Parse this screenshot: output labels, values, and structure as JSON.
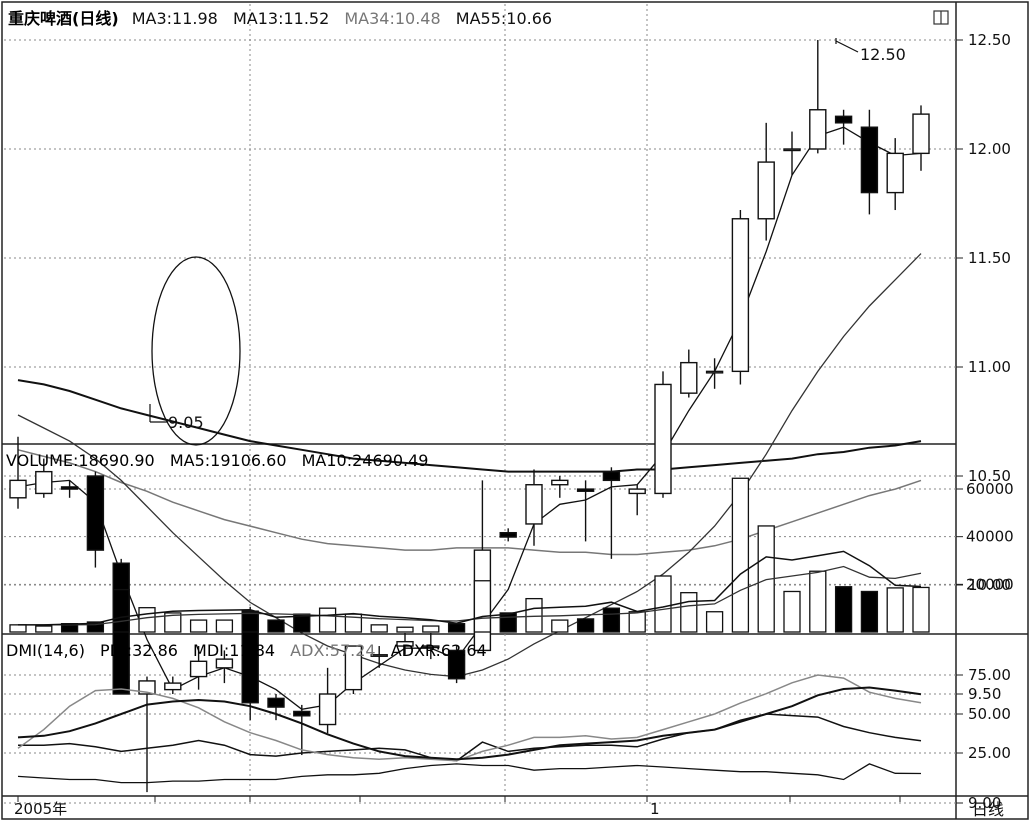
{
  "price_panel": {
    "title": "重庆啤酒(日线)",
    "ma_labels": [
      {
        "text": "MA3:11.98",
        "color": "#111111"
      },
      {
        "text": "MA13:11.52",
        "color": "#111111"
      },
      {
        "text": "MA34:10.48",
        "color": "#777777"
      },
      {
        "text": "MA55:10.66",
        "color": "#111111"
      }
    ],
    "y_ticks": [
      "12.50",
      "12.00",
      "11.50",
      "11.00",
      "10.50",
      "10.00",
      "9.50",
      "9.00"
    ],
    "annotations": {
      "low": "9.05",
      "high": "12.50"
    }
  },
  "volume_panel": {
    "labels": [
      {
        "text": "VOLUME:18690.90",
        "color": "#111111"
      },
      {
        "text": "MA5:19106.60",
        "color": "#111111"
      },
      {
        "text": "MA10:24690.49",
        "color": "#111111"
      }
    ],
    "y_ticks": [
      "60000",
      "40000",
      "20000"
    ]
  },
  "dmi_panel": {
    "labels": [
      {
        "text": "DMI(14,6)",
        "color": "#111111"
      },
      {
        "text": "PDI:32.86",
        "color": "#111111"
      },
      {
        "text": "MDI:11.84",
        "color": "#111111"
      },
      {
        "text": "ADX:57.24",
        "color": "#777777"
      },
      {
        "text": "ADXR:62.64",
        "color": "#111111"
      }
    ],
    "y_ticks": [
      "75.00",
      "50.00",
      "25.00"
    ]
  },
  "x_axis": {
    "labels": [
      "2005年",
      "1"
    ]
  },
  "period_button": "日线",
  "colors": {
    "up": "#ffffff",
    "down": "#000000",
    "grid": "#9a9a9a",
    "ma34": "#777777"
  },
  "chart_data": [
    {
      "type": "candlestick",
      "title": "重庆啤酒(日线)",
      "ylim": [
        8.85,
        12.72
      ],
      "candles": [
        {
          "o": 10.4,
          "h": 10.68,
          "l": 10.35,
          "c": 10.48
        },
        {
          "o": 10.42,
          "h": 10.58,
          "l": 10.4,
          "c": 10.52
        },
        {
          "o": 10.45,
          "h": 10.48,
          "l": 10.4,
          "c": 10.44
        },
        {
          "o": 10.5,
          "h": 10.52,
          "l": 10.08,
          "c": 10.16
        },
        {
          "o": 10.1,
          "h": 10.12,
          "l": 9.5,
          "c": 9.5
        },
        {
          "o": 9.5,
          "h": 9.58,
          "l": 9.05,
          "c": 9.56
        },
        {
          "o": 9.52,
          "h": 9.58,
          "l": 9.5,
          "c": 9.55
        },
        {
          "o": 9.58,
          "h": 9.72,
          "l": 9.52,
          "c": 9.65
        },
        {
          "o": 9.62,
          "h": 9.7,
          "l": 9.55,
          "c": 9.66
        },
        {
          "o": 9.88,
          "h": 9.9,
          "l": 9.38,
          "c": 9.46
        },
        {
          "o": 9.48,
          "h": 9.5,
          "l": 9.38,
          "c": 9.44
        },
        {
          "o": 9.42,
          "h": 9.45,
          "l": 9.22,
          "c": 9.4
        },
        {
          "o": 9.36,
          "h": 9.62,
          "l": 9.32,
          "c": 9.5
        },
        {
          "o": 9.52,
          "h": 9.72,
          "l": 9.5,
          "c": 9.72
        },
        {
          "o": 9.68,
          "h": 9.72,
          "l": 9.62,
          "c": 9.68
        },
        {
          "o": 9.72,
          "h": 9.78,
          "l": 9.68,
          "c": 9.74
        },
        {
          "o": 9.72,
          "h": 9.78,
          "l": 9.66,
          "c": 9.72
        },
        {
          "o": 9.7,
          "h": 9.72,
          "l": 9.55,
          "c": 9.57
        },
        {
          "o": 9.7,
          "h": 10.48,
          "l": 9.7,
          "c": 10.16
        },
        {
          "o": 10.24,
          "h": 10.26,
          "l": 10.2,
          "c": 10.22
        },
        {
          "o": 10.28,
          "h": 10.53,
          "l": 10.18,
          "c": 10.46
        },
        {
          "o": 10.46,
          "h": 10.5,
          "l": 10.4,
          "c": 10.48
        },
        {
          "o": 10.44,
          "h": 10.48,
          "l": 10.2,
          "c": 10.43
        },
        {
          "o": 10.52,
          "h": 10.54,
          "l": 10.12,
          "c": 10.48
        },
        {
          "o": 10.42,
          "h": 10.46,
          "l": 10.32,
          "c": 10.44
        },
        {
          "o": 10.42,
          "h": 10.98,
          "l": 10.4,
          "c": 10.92
        },
        {
          "o": 10.88,
          "h": 11.08,
          "l": 10.86,
          "c": 11.02
        },
        {
          "o": 10.98,
          "h": 11.04,
          "l": 10.9,
          "c": 10.98
        },
        {
          "o": 10.98,
          "h": 11.72,
          "l": 10.92,
          "c": 11.68
        },
        {
          "o": 11.68,
          "h": 12.12,
          "l": 11.58,
          "c": 11.94
        },
        {
          "o": 12.0,
          "h": 12.08,
          "l": 11.88,
          "c": 12.0
        },
        {
          "o": 12.0,
          "h": 12.5,
          "l": 11.98,
          "c": 12.18
        },
        {
          "o": 12.15,
          "h": 12.18,
          "l": 12.02,
          "c": 12.12
        },
        {
          "o": 12.1,
          "h": 12.18,
          "l": 11.7,
          "c": 11.8
        },
        {
          "o": 11.8,
          "h": 12.05,
          "l": 11.72,
          "c": 11.98
        },
        {
          "o": 11.98,
          "h": 12.2,
          "l": 11.9,
          "c": 12.16
        }
      ],
      "ma3": [
        10.45,
        10.47,
        10.48,
        10.38,
        10.05,
        9.75,
        9.52,
        9.58,
        9.62,
        9.58,
        9.52,
        9.43,
        9.45,
        9.55,
        9.63,
        9.71,
        9.71,
        9.66,
        9.82,
        9.98,
        10.28,
        10.37,
        10.39,
        10.45,
        10.46,
        10.6,
        10.8,
        10.98,
        11.22,
        11.53,
        11.88,
        12.06,
        12.1,
        12.03,
        11.97,
        11.98
      ],
      "ma13": [
        10.78,
        10.72,
        10.66,
        10.58,
        10.48,
        10.36,
        10.24,
        10.13,
        10.02,
        9.92,
        9.85,
        9.78,
        9.72,
        9.68,
        9.64,
        9.61,
        9.59,
        9.58,
        9.61,
        9.66,
        9.73,
        9.79,
        9.85,
        9.91,
        9.97,
        10.05,
        10.15,
        10.27,
        10.42,
        10.6,
        10.8,
        10.98,
        11.14,
        11.28,
        11.4,
        11.52
      ],
      "ma34": [
        10.62,
        10.59,
        10.56,
        10.52,
        10.47,
        10.43,
        10.38,
        10.34,
        10.3,
        10.27,
        10.24,
        10.21,
        10.19,
        10.18,
        10.17,
        10.16,
        10.16,
        10.17,
        10.17,
        10.17,
        10.16,
        10.15,
        10.15,
        10.14,
        10.14,
        10.15,
        10.16,
        10.18,
        10.21,
        10.25,
        10.29,
        10.33,
        10.37,
        10.41,
        10.44,
        10.48
      ],
      "ma55": [
        10.94,
        10.92,
        10.89,
        10.85,
        10.81,
        10.78,
        10.75,
        10.72,
        10.69,
        10.66,
        10.64,
        10.62,
        10.6,
        10.58,
        10.57,
        10.56,
        10.55,
        10.54,
        10.53,
        10.52,
        10.52,
        10.52,
        10.52,
        10.52,
        10.53,
        10.53,
        10.54,
        10.55,
        10.56,
        10.57,
        10.58,
        10.6,
        10.61,
        10.63,
        10.64,
        10.66
      ]
    },
    {
      "type": "bar",
      "title": "VOLUME",
      "ylim": [
        0,
        71000
      ],
      "values": [
        3000,
        2500,
        3500,
        4200,
        17800,
        10200,
        8000,
        5000,
        5000,
        8200,
        5000,
        7500,
        10000,
        7500,
        3000,
        2000,
        2500,
        3500,
        21500,
        8000,
        14000,
        5000,
        5500,
        10000,
        8500,
        23500,
        16500,
        8500,
        64500,
        44500,
        17000,
        25500,
        19000,
        17000,
        18500,
        18690
      ],
      "ma5": [
        3000,
        3000,
        3300,
        3600,
        6200,
        7600,
        8700,
        9000,
        9200,
        9300,
        6200,
        6600,
        7000,
        7700,
        6600,
        6000,
        5100,
        3700,
        6500,
        7500,
        9900,
        10400,
        10800,
        12500,
        8600,
        10500,
        12800,
        13200,
        24300,
        31500,
        30200,
        32000,
        33800,
        27800,
        19600,
        19100
      ],
      "ma10": [
        3000,
        3000,
        3000,
        3100,
        4500,
        6000,
        7000,
        7400,
        7600,
        7800,
        7600,
        7300,
        6800,
        6200,
        5600,
        5200,
        4800,
        4600,
        5800,
        6200,
        6600,
        6800,
        7200,
        7500,
        8000,
        9500,
        11000,
        11800,
        17500,
        22000,
        23500,
        25000,
        27500,
        23000,
        22500,
        24690
      ]
    },
    {
      "type": "line",
      "title": "DMI(14,6)",
      "ylim": [
        0,
        98
      ],
      "series": [
        {
          "name": "PDI",
          "values": [
            30,
            30,
            31,
            29,
            26,
            28,
            30,
            33,
            30,
            24,
            23,
            25,
            26,
            27,
            28,
            27,
            22,
            20,
            32,
            26,
            28,
            29,
            30,
            30,
            29,
            34,
            38,
            40,
            46,
            50,
            49,
            48,
            42,
            38,
            35,
            32.86
          ]
        },
        {
          "name": "MDI",
          "values": [
            10,
            9,
            8,
            8,
            6,
            6,
            7,
            7,
            8,
            8,
            8,
            10,
            11,
            11,
            12,
            15,
            17,
            18,
            17,
            17,
            14,
            15,
            15,
            16,
            17,
            16,
            15,
            14,
            13,
            13,
            12,
            11,
            8,
            18,
            12,
            11.84
          ]
        },
        {
          "name": "ADX",
          "values": [
            28,
            40,
            55,
            65,
            66,
            64,
            60,
            54,
            45,
            38,
            33,
            27,
            24,
            22,
            21,
            22,
            21,
            20,
            26,
            30,
            35,
            35,
            36,
            34,
            35,
            40,
            45,
            50,
            57,
            63,
            70,
            75,
            73,
            64,
            60,
            57.24
          ]
        },
        {
          "name": "ADXR",
          "values": [
            35,
            36,
            39,
            44,
            50,
            56,
            58,
            59,
            58,
            55,
            50,
            44,
            37,
            31,
            26,
            23,
            22,
            21,
            22,
            24,
            27,
            30,
            31,
            32,
            33,
            36,
            38,
            40,
            45,
            50,
            55,
            62,
            66,
            67,
            65,
            62.64
          ]
        }
      ]
    }
  ]
}
